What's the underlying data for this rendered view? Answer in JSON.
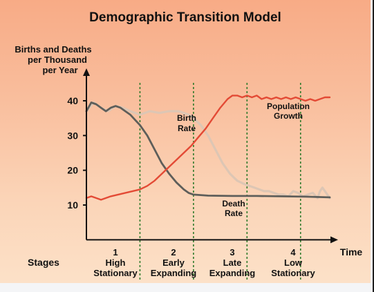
{
  "chart_data": {
    "type": "line",
    "title": "Demographic Transition Model",
    "ylabel": [
      "Births and Deaths",
      "per Thousand",
      "per Year"
    ],
    "xlabel": "Time",
    "stages_label": "Stages",
    "ylim": [
      0,
      50
    ],
    "yticks": [
      10,
      20,
      30,
      40
    ],
    "xlim": [
      0,
      100
    ],
    "stage_boundaries": [
      22,
      44,
      66,
      88
    ],
    "stages": [
      {
        "number": "1",
        "name": [
          "High",
          "Stationary"
        ]
      },
      {
        "number": "2",
        "name": [
          "Early",
          "Expanding"
        ]
      },
      {
        "number": "3",
        "name": [
          "Late",
          "Expanding"
        ]
      },
      {
        "number": "4",
        "name": [
          "Low",
          "Stationary"
        ]
      }
    ],
    "series": [
      {
        "name": "Birth Rate",
        "label": [
          "Birth",
          "Rate"
        ],
        "color": "#ddc6b4",
        "points": [
          [
            0,
            37
          ],
          [
            3,
            39.5
          ],
          [
            6,
            38
          ],
          [
            9,
            37
          ],
          [
            12,
            38.5
          ],
          [
            15,
            38
          ],
          [
            18,
            37
          ],
          [
            22,
            36
          ],
          [
            26,
            37
          ],
          [
            30,
            36.5
          ],
          [
            34,
            37
          ],
          [
            38,
            37
          ],
          [
            42,
            36
          ],
          [
            44,
            35
          ],
          [
            47,
            33
          ],
          [
            50,
            30
          ],
          [
            53,
            26
          ],
          [
            56,
            22
          ],
          [
            59,
            19
          ],
          [
            62,
            17
          ],
          [
            65,
            16
          ],
          [
            67,
            15.5
          ],
          [
            69,
            15
          ],
          [
            71,
            14.5
          ],
          [
            73,
            14
          ],
          [
            75,
            14
          ],
          [
            77,
            13.5
          ],
          [
            79,
            13
          ],
          [
            81,
            13
          ],
          [
            83,
            12.5
          ],
          [
            85,
            14
          ],
          [
            87,
            13.5
          ],
          [
            89,
            12.5
          ],
          [
            91,
            13
          ],
          [
            93,
            13.5
          ],
          [
            95,
            12
          ],
          [
            96,
            14
          ],
          [
            97,
            15
          ],
          [
            98,
            14
          ],
          [
            100,
            12
          ]
        ]
      },
      {
        "name": "Death Rate",
        "label": [
          "Death",
          "Rate"
        ],
        "color": "#5e5e5a",
        "points": [
          [
            0,
            37
          ],
          [
            2,
            39.5
          ],
          [
            4,
            39
          ],
          [
            6,
            38
          ],
          [
            8,
            37
          ],
          [
            10,
            38
          ],
          [
            12,
            38.5
          ],
          [
            14,
            38
          ],
          [
            16,
            37
          ],
          [
            18,
            36
          ],
          [
            20,
            34.5
          ],
          [
            22,
            33
          ],
          [
            25,
            30
          ],
          [
            28,
            26
          ],
          [
            31,
            22
          ],
          [
            34,
            19
          ],
          [
            37,
            16.5
          ],
          [
            40,
            14.5
          ],
          [
            42,
            13.5
          ],
          [
            44,
            13
          ],
          [
            50,
            12.7
          ],
          [
            60,
            12.6
          ],
          [
            70,
            12.6
          ],
          [
            80,
            12.5
          ],
          [
            90,
            12.4
          ],
          [
            100,
            12.2
          ]
        ]
      },
      {
        "name": "Population Growth",
        "label": [
          "Population",
          "Growth"
        ],
        "color": "#e34a35",
        "points": [
          [
            0,
            12
          ],
          [
            2,
            12.5
          ],
          [
            4,
            12
          ],
          [
            6,
            11.5
          ],
          [
            8,
            12
          ],
          [
            10,
            12.5
          ],
          [
            13,
            13
          ],
          [
            16,
            13.5
          ],
          [
            19,
            14
          ],
          [
            22,
            14.5
          ],
          [
            25,
            15.5
          ],
          [
            28,
            17
          ],
          [
            31,
            19
          ],
          [
            34,
            21
          ],
          [
            37,
            23
          ],
          [
            40,
            25
          ],
          [
            43,
            27
          ],
          [
            46,
            29.5
          ],
          [
            49,
            32
          ],
          [
            52,
            35
          ],
          [
            55,
            38
          ],
          [
            58,
            40.5
          ],
          [
            60,
            41.5
          ],
          [
            62,
            41.5
          ],
          [
            64,
            41
          ],
          [
            66,
            41.5
          ],
          [
            68,
            41
          ],
          [
            70,
            41.5
          ],
          [
            72,
            40.5
          ],
          [
            74,
            41
          ],
          [
            76,
            40.5
          ],
          [
            78,
            41
          ],
          [
            80,
            40.5
          ],
          [
            82,
            41
          ],
          [
            84,
            40.5
          ],
          [
            86,
            41
          ],
          [
            88,
            40.5
          ],
          [
            90,
            40
          ],
          [
            92,
            40.5
          ],
          [
            94,
            40
          ],
          [
            96,
            40.5
          ],
          [
            98,
            41
          ],
          [
            100,
            41
          ]
        ]
      }
    ]
  }
}
